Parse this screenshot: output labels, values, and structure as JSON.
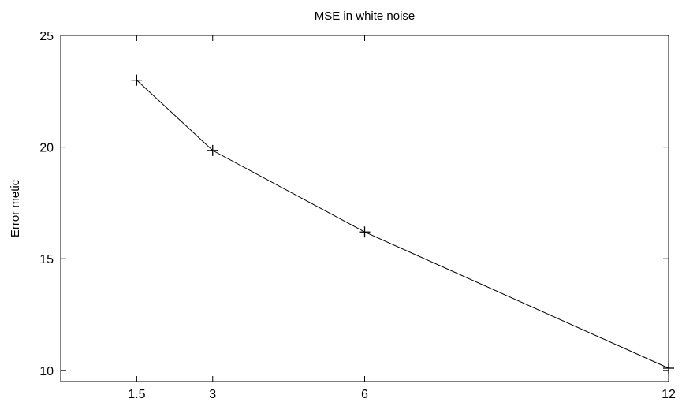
{
  "chart_data": {
    "type": "line",
    "title": "MSE in white noise",
    "xlabel": "",
    "ylabel": "Error metic",
    "x": [
      1.5,
      3,
      6,
      12
    ],
    "y": [
      23.0,
      19.85,
      16.2,
      10.1
    ],
    "xlim": [
      0,
      12
    ],
    "ylim": [
      9.5,
      25
    ],
    "xticks": [
      1.5,
      3,
      6,
      12
    ],
    "xtick_labels": [
      "1.5",
      "3",
      "6",
      "12"
    ],
    "yticks": [
      10,
      15,
      20,
      25
    ],
    "ytick_labels": [
      "10",
      "15",
      "20",
      "25"
    ],
    "marker": "+",
    "line_color": "#000000",
    "grid": false,
    "legend": false
  }
}
